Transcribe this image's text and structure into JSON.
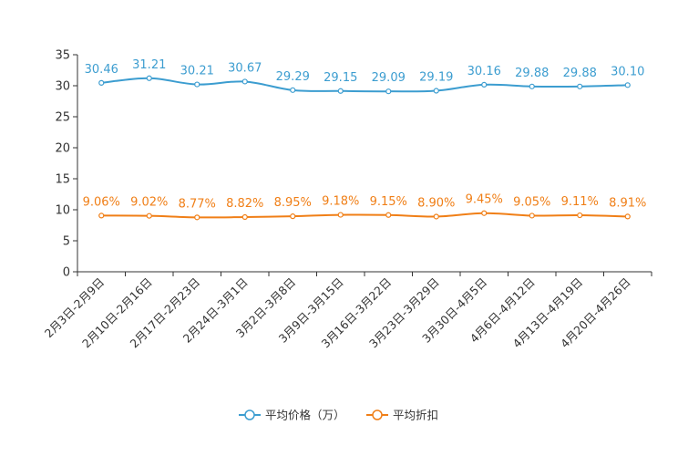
{
  "chart_data": {
    "type": "line",
    "title": "",
    "categories": [
      "2月3日-2月9日",
      "2月10日-2月16日",
      "2月17日-2月23日",
      "2月24日-3月1日",
      "3月2日-3月8日",
      "3月9日-3月15日",
      "3月16日-3月22日",
      "3月23日-3月29日",
      "3月30日-4月5日",
      "4月6日-4月12日",
      "4月13日-4月19日",
      "4月20日-4月26日"
    ],
    "ylim": [
      0,
      35
    ],
    "yticks": [
      0,
      5,
      10,
      15,
      20,
      25,
      30,
      35
    ],
    "legend_position": "bottom-center",
    "series": [
      {
        "name": "平均价格（万）",
        "color": "#3c9dd0",
        "values": [
          30.46,
          31.21,
          30.21,
          30.67,
          29.29,
          29.15,
          29.09,
          29.19,
          30.16,
          29.88,
          29.88,
          30.1
        ],
        "labels": [
          "30.46",
          "31.21",
          "30.21",
          "30.67",
          "29.29",
          "29.15",
          "29.09",
          "29.19",
          "30.16",
          "29.88",
          "29.88",
          "30.10"
        ]
      },
      {
        "name": "平均折扣",
        "color": "#f07f17",
        "values": [
          9.06,
          9.02,
          8.77,
          8.82,
          8.95,
          9.18,
          9.15,
          8.9,
          9.45,
          9.05,
          9.11,
          8.91
        ],
        "labels": [
          "9.06%",
          "9.02%",
          "8.77%",
          "8.82%",
          "8.95%",
          "9.18%",
          "9.15%",
          "8.90%",
          "9.45%",
          "9.05%",
          "9.11%",
          "8.91%"
        ]
      }
    ]
  }
}
